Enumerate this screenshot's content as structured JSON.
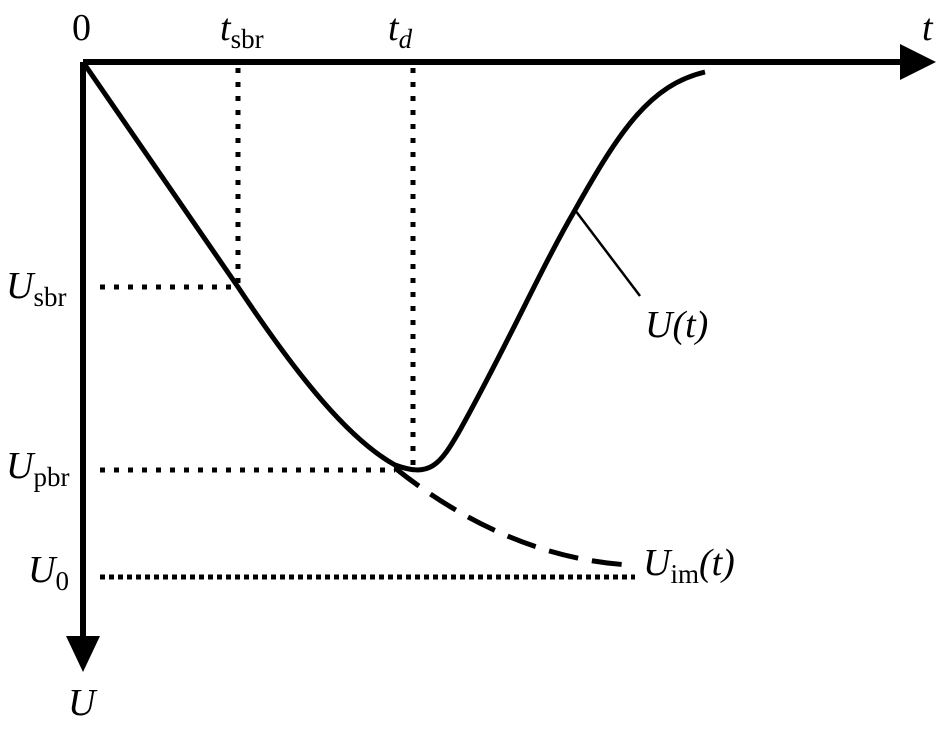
{
  "labels": {
    "origin": "0",
    "t_axis": "t",
    "U_axis": "U",
    "t_sbr": {
      "symbol": "t",
      "sub": "sbr"
    },
    "t_d": {
      "symbol": "t",
      "sub": "d"
    },
    "U_sbr": {
      "symbol": "U",
      "sub": "sbr"
    },
    "U_pbr": {
      "symbol": "U",
      "sub": "pbr"
    },
    "U_0": {
      "symbol": "U",
      "sub": "0"
    },
    "U_t": "U(t)",
    "U_im": {
      "symbol": "U",
      "sub": "im",
      "suffix": "(t)"
    }
  }
}
